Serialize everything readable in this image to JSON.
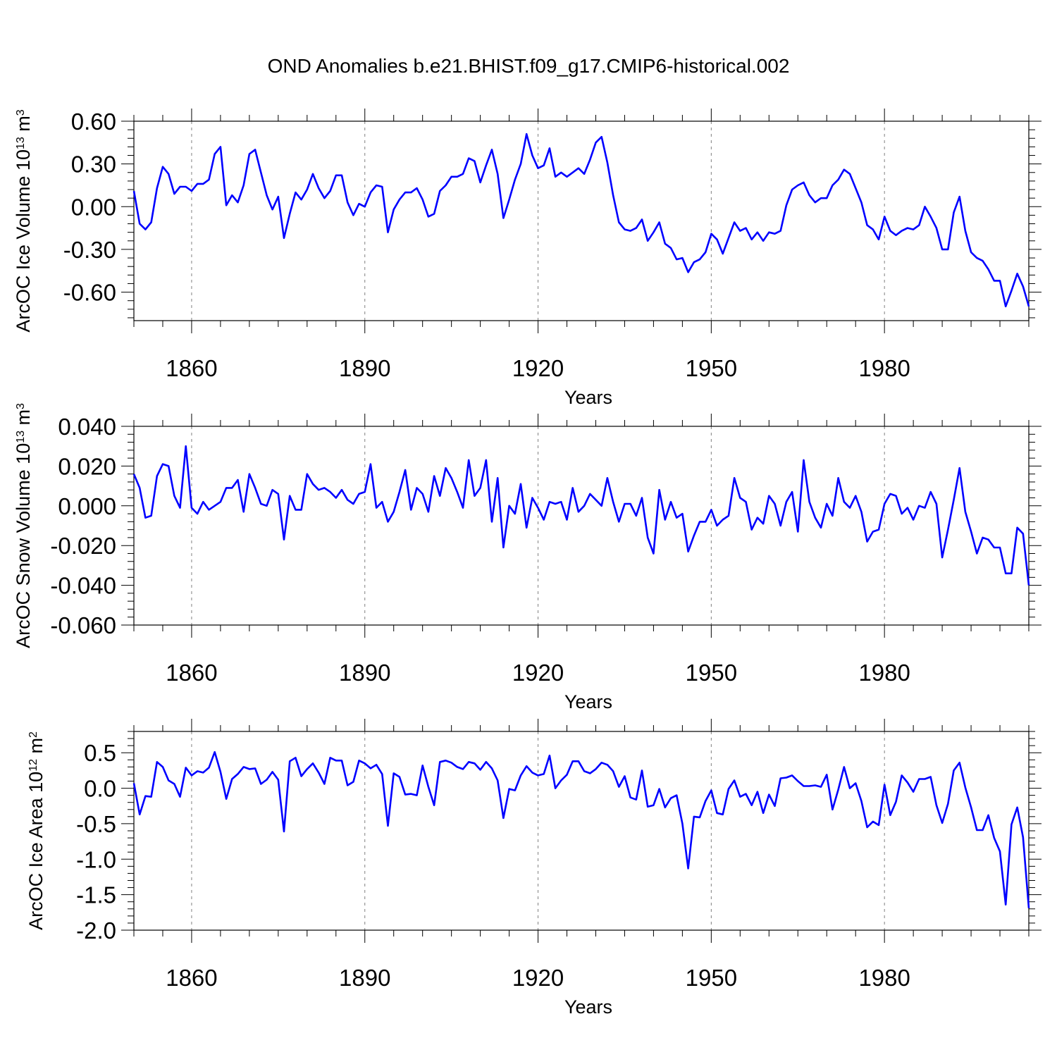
{
  "title": "OND Anomalies b.e21.BHIST.f09_g17.CMIP6-historical.002",
  "colors": {
    "line": "#0000ff",
    "axis": "#000000",
    "grid": "#808080"
  },
  "chart_data": [
    {
      "type": "line",
      "title": "OND Anomalies b.e21.BHIST.f09_g17.CMIP6-historical.002",
      "xlabel": "Years",
      "ylabel": "ArcOC Ice Volume 10",
      "ylabel_exp": "13",
      "ylabel_unit": "m",
      "ylabel_unit_exp": "3",
      "xlim": [
        1850,
        2005
      ],
      "ylim": [
        -0.8,
        0.6
      ],
      "yticks": [
        0.6,
        0.3,
        0.0,
        -0.3,
        -0.6
      ],
      "ytick_labels": [
        "0.60",
        "0.30",
        "0.00",
        "-0.30",
        "-0.60"
      ],
      "xticks": [
        1860,
        1890,
        1920,
        1950,
        1980
      ],
      "xtick_labels": [
        "1860",
        "1890",
        "1920",
        "1950",
        "1980"
      ],
      "x_start": 1850,
      "values": [
        0.11,
        -0.12,
        -0.16,
        -0.11,
        0.13,
        0.28,
        0.23,
        0.09,
        0.14,
        0.14,
        0.11,
        0.16,
        0.16,
        0.19,
        0.37,
        0.42,
        0.01,
        0.08,
        0.03,
        0.15,
        0.37,
        0.4,
        0.24,
        0.08,
        -0.02,
        0.07,
        -0.22,
        -0.05,
        0.1,
        0.05,
        0.12,
        0.23,
        0.13,
        0.06,
        0.11,
        0.22,
        0.22,
        0.03,
        -0.06,
        0.02,
        0.0,
        0.1,
        0.15,
        0.14,
        -0.18,
        -0.02,
        0.05,
        0.1,
        0.1,
        0.13,
        0.05,
        -0.07,
        -0.05,
        0.11,
        0.15,
        0.21,
        0.21,
        0.23,
        0.34,
        0.32,
        0.17,
        0.29,
        0.4,
        0.23,
        -0.08,
        0.05,
        0.19,
        0.3,
        0.51,
        0.36,
        0.27,
        0.29,
        0.41,
        0.21,
        0.24,
        0.21,
        0.24,
        0.27,
        0.23,
        0.33,
        0.45,
        0.49,
        0.31,
        0.08,
        -0.11,
        -0.16,
        -0.17,
        -0.15,
        -0.09,
        -0.24,
        -0.18,
        -0.11,
        -0.26,
        -0.29,
        -0.37,
        -0.36,
        -0.46,
        -0.39,
        -0.37,
        -0.32,
        -0.19,
        -0.23,
        -0.33,
        -0.22,
        -0.11,
        -0.17,
        -0.15,
        -0.23,
        -0.18,
        -0.24,
        -0.18,
        -0.19,
        -0.17,
        0.01,
        0.12,
        0.15,
        0.17,
        0.08,
        0.03,
        0.06,
        0.06,
        0.15,
        0.19,
        0.26,
        0.23,
        0.13,
        0.03,
        -0.13,
        -0.16,
        -0.23,
        -0.07,
        -0.17,
        -0.2,
        -0.17,
        -0.15,
        -0.16,
        -0.13,
        0.0,
        -0.07,
        -0.15,
        -0.3,
        -0.3,
        -0.04,
        0.07,
        -0.17,
        -0.32,
        -0.36,
        -0.38,
        -0.44,
        -0.52,
        -0.52,
        -0.7,
        -0.59,
        -0.47,
        -0.56,
        -0.7
      ]
    },
    {
      "type": "line",
      "xlabel": "Years",
      "ylabel": "ArcOC Snow Volume 10",
      "ylabel_exp": "13",
      "ylabel_unit": "m",
      "ylabel_unit_exp": "3",
      "xlim": [
        1850,
        2005
      ],
      "ylim": [
        -0.06,
        0.04
      ],
      "yticks": [
        0.04,
        0.02,
        0.0,
        -0.02,
        -0.04,
        -0.06
      ],
      "ytick_labels": [
        "0.040",
        "0.020",
        "0.000",
        "-0.020",
        "-0.040",
        "-0.060"
      ],
      "xticks": [
        1860,
        1890,
        1920,
        1950,
        1980
      ],
      "xtick_labels": [
        "1860",
        "1890",
        "1920",
        "1950",
        "1980"
      ],
      "x_start": 1850,
      "values": [
        0.016,
        0.009,
        -0.006,
        -0.005,
        0.015,
        0.021,
        0.02,
        0.005,
        -0.001,
        0.03,
        -0.001,
        -0.004,
        0.002,
        -0.002,
        0.0,
        0.002,
        0.009,
        0.009,
        0.013,
        -0.003,
        0.016,
        0.009,
        0.001,
        0.0,
        0.008,
        0.006,
        -0.017,
        0.005,
        -0.002,
        -0.002,
        0.016,
        0.011,
        0.008,
        0.009,
        0.007,
        0.004,
        0.008,
        0.003,
        0.001,
        0.006,
        0.007,
        0.021,
        -0.001,
        0.002,
        -0.008,
        -0.003,
        0.007,
        0.018,
        -0.002,
        0.009,
        0.006,
        -0.003,
        0.015,
        0.005,
        0.019,
        0.014,
        0.007,
        -0.001,
        0.023,
        0.005,
        0.009,
        0.023,
        -0.008,
        0.014,
        -0.021,
        0.0,
        -0.004,
        0.011,
        -0.011,
        0.004,
        -0.001,
        -0.007,
        0.002,
        0.001,
        0.002,
        -0.007,
        0.009,
        -0.003,
        0.0,
        0.006,
        0.003,
        0.0,
        0.014,
        0.002,
        -0.008,
        0.001,
        0.001,
        -0.005,
        0.004,
        -0.016,
        -0.024,
        0.008,
        -0.007,
        0.002,
        -0.006,
        -0.004,
        -0.023,
        -0.015,
        -0.008,
        -0.008,
        -0.002,
        -0.01,
        -0.007,
        -0.005,
        0.014,
        0.004,
        0.002,
        -0.012,
        -0.006,
        -0.009,
        0.005,
        0.001,
        -0.01,
        0.002,
        0.007,
        -0.013,
        0.023,
        0.002,
        -0.006,
        -0.011,
        0.001,
        -0.005,
        0.014,
        0.002,
        -0.001,
        0.005,
        -0.003,
        -0.018,
        -0.013,
        -0.012,
        0.001,
        0.006,
        0.005,
        -0.004,
        -0.001,
        -0.007,
        0.0,
        -0.001,
        0.007,
        0.001,
        -0.026,
        -0.012,
        0.003,
        0.019,
        -0.003,
        -0.013,
        -0.024,
        -0.016,
        -0.017,
        -0.021,
        -0.021,
        -0.034,
        -0.034,
        -0.011,
        -0.014,
        -0.04
      ]
    },
    {
      "type": "line",
      "xlabel": "Years",
      "ylabel": "ArcOC Ice Area 10",
      "ylabel_exp": "12",
      "ylabel_unit": "m",
      "ylabel_unit_exp": "2",
      "xlim": [
        1850,
        2005
      ],
      "ylim": [
        -2.0,
        0.8
      ],
      "yticks": [
        0.5,
        0.0,
        -0.5,
        -1.0,
        -1.5,
        -2.0
      ],
      "ytick_labels": [
        "0.5",
        "0.0",
        "-0.5",
        "-1.0",
        "-1.5",
        "-2.0"
      ],
      "xticks": [
        1860,
        1890,
        1920,
        1950,
        1980
      ],
      "xtick_labels": [
        "1860",
        "1890",
        "1920",
        "1950",
        "1980"
      ],
      "x_start": 1850,
      "values": [
        0.07,
        -0.37,
        -0.11,
        -0.12,
        0.37,
        0.3,
        0.11,
        0.06,
        -0.12,
        0.29,
        0.18,
        0.24,
        0.22,
        0.29,
        0.51,
        0.23,
        -0.15,
        0.13,
        0.2,
        0.3,
        0.27,
        0.28,
        0.06,
        0.12,
        0.23,
        0.12,
        -0.61,
        0.38,
        0.43,
        0.17,
        0.27,
        0.35,
        0.22,
        0.06,
        0.43,
        0.39,
        0.39,
        0.04,
        0.09,
        0.39,
        0.35,
        0.28,
        0.33,
        0.2,
        -0.53,
        0.21,
        0.16,
        -0.09,
        -0.08,
        -0.1,
        0.32,
        0.02,
        -0.24,
        0.37,
        0.39,
        0.36,
        0.3,
        0.27,
        0.37,
        0.35,
        0.26,
        0.37,
        0.28,
        0.11,
        -0.42,
        -0.01,
        -0.03,
        0.18,
        0.31,
        0.22,
        0.18,
        0.2,
        0.46,
        0.0,
        0.11,
        0.19,
        0.38,
        0.38,
        0.24,
        0.21,
        0.27,
        0.36,
        0.33,
        0.24,
        0.02,
        0.17,
        -0.13,
        -0.16,
        0.25,
        -0.26,
        -0.24,
        -0.01,
        -0.27,
        -0.14,
        -0.1,
        -0.5,
        -1.13,
        -0.4,
        -0.41,
        -0.18,
        -0.03,
        -0.35,
        -0.37,
        -0.01,
        0.11,
        -0.12,
        -0.08,
        -0.24,
        -0.05,
        -0.35,
        -0.09,
        -0.25,
        0.14,
        0.15,
        0.18,
        0.1,
        0.03,
        0.03,
        0.04,
        0.02,
        0.19,
        -0.3,
        -0.02,
        0.3,
        0.0,
        0.07,
        -0.18,
        -0.55,
        -0.47,
        -0.52,
        0.05,
        -0.38,
        -0.19,
        0.18,
        0.08,
        -0.05,
        0.13,
        0.13,
        0.16,
        -0.24,
        -0.49,
        -0.22,
        0.25,
        0.36,
        0.01,
        -0.27,
        -0.59,
        -0.59,
        -0.38,
        -0.7,
        -0.89,
        -1.64,
        -0.51,
        -0.27,
        -0.69,
        -1.69
      ]
    }
  ]
}
